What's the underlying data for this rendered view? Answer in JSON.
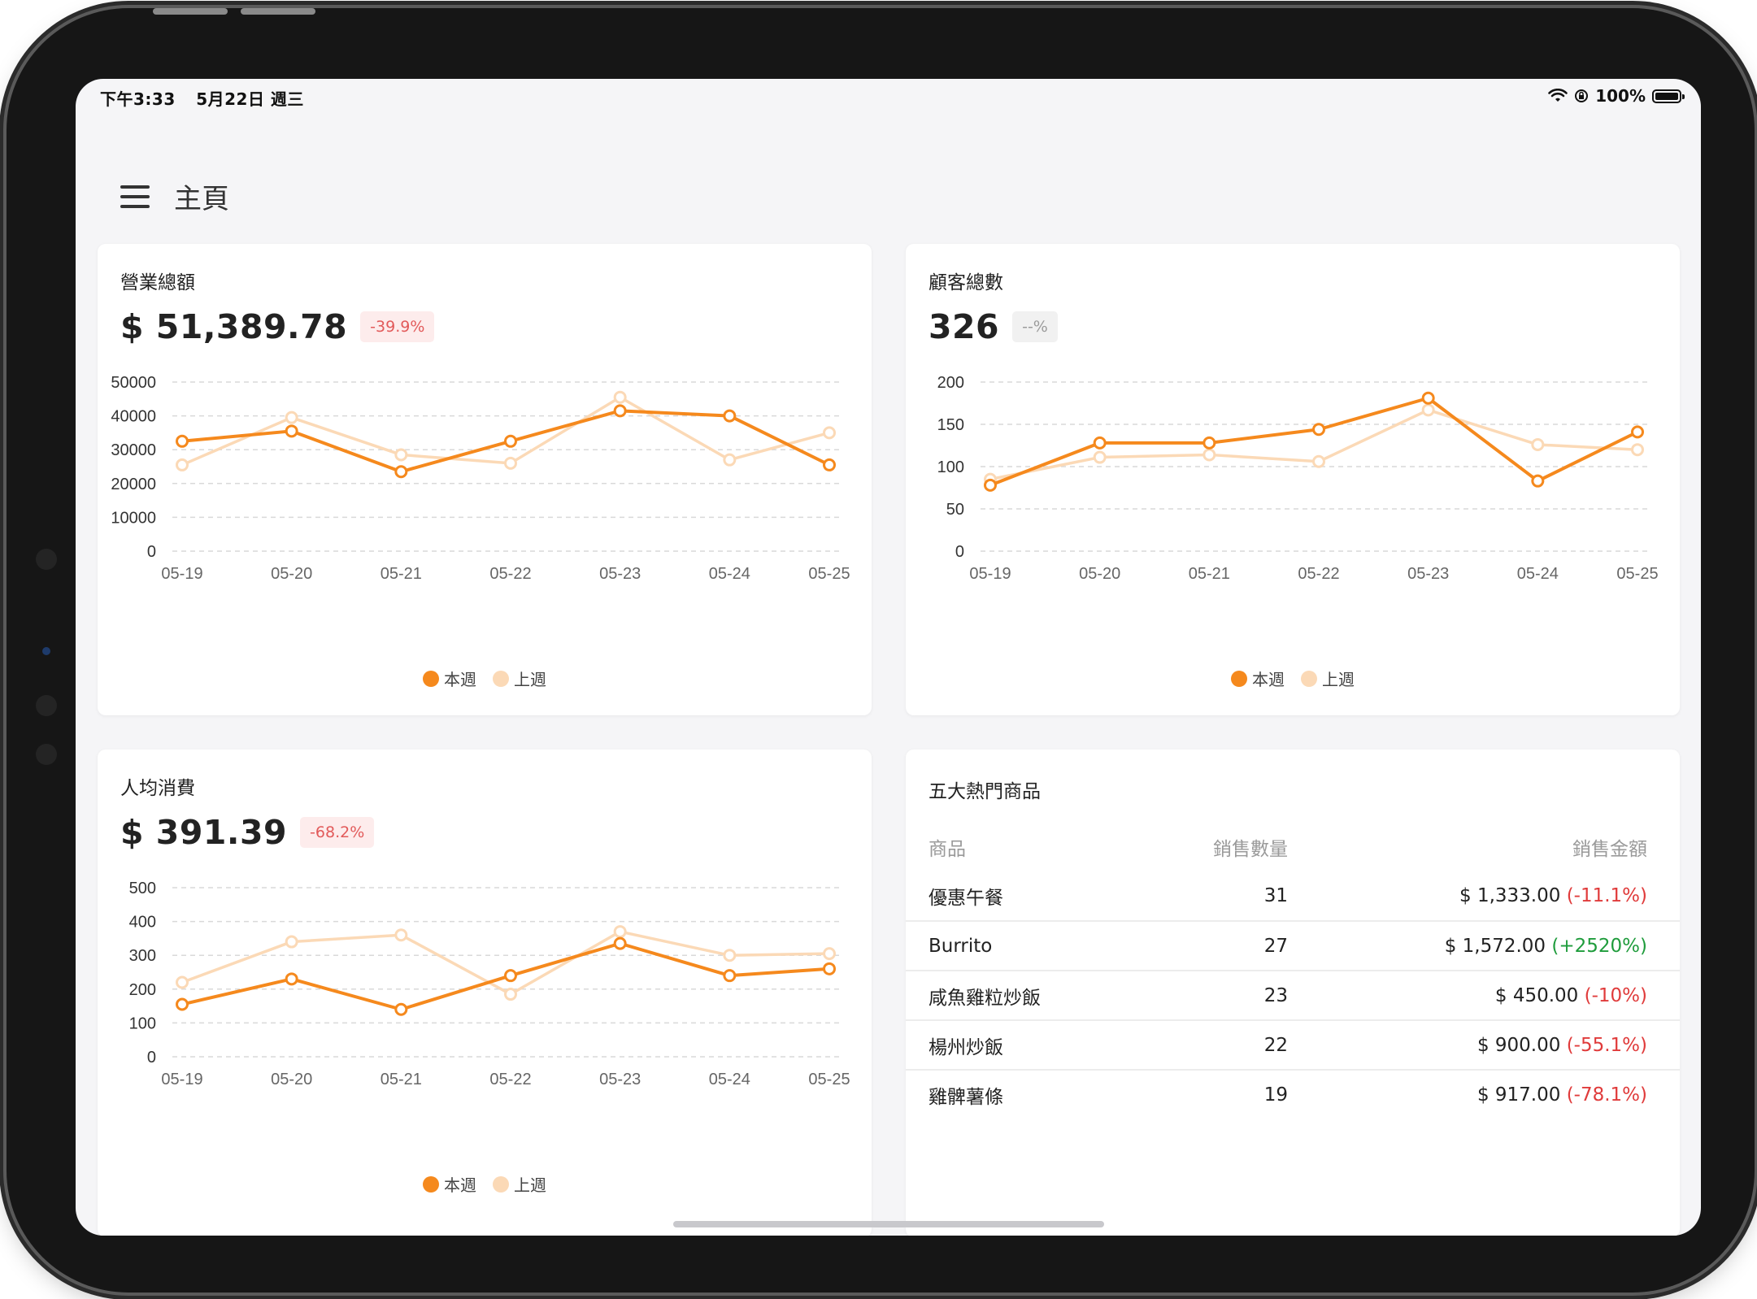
{
  "status_bar": {
    "time": "下午3:33",
    "date": "5月22日 週三",
    "battery": "100%"
  },
  "header": {
    "title": "主頁"
  },
  "colors": {
    "this_week": "#f5891d",
    "last_week": "#fbd9b6",
    "negative": "#e03b3b",
    "positive": "#1f9c3c"
  },
  "legend": {
    "this_week": "本週",
    "last_week": "上週"
  },
  "revenue": {
    "title": "營業總額",
    "value": "$ 51,389.78",
    "change": "-39.9%",
    "chart_data": {
      "type": "line",
      "categories": [
        "05-19",
        "05-20",
        "05-21",
        "05-22",
        "05-23",
        "05-24",
        "05-25"
      ],
      "ylim": [
        0,
        50000
      ],
      "yticks": [
        0,
        10000,
        20000,
        30000,
        40000,
        50000
      ],
      "series": [
        {
          "name": "本週",
          "values": [
            32500,
            35500,
            23500,
            32500,
            41500,
            40000,
            25500
          ]
        },
        {
          "name": "上週",
          "values": [
            25500,
            39500,
            28500,
            26000,
            45500,
            27000,
            35000
          ]
        }
      ],
      "grid": true,
      "legend": "bottom-center"
    }
  },
  "customers": {
    "title": "顧客總數",
    "value": "326",
    "change": "--%",
    "chart_data": {
      "type": "line",
      "categories": [
        "05-19",
        "05-20",
        "05-21",
        "05-22",
        "05-23",
        "05-24",
        "05-25"
      ],
      "ylim": [
        0,
        200
      ],
      "yticks": [
        0,
        50,
        100,
        150,
        200
      ],
      "series": [
        {
          "name": "本週",
          "values": [
            78,
            128,
            128,
            144,
            181,
            83,
            141
          ]
        },
        {
          "name": "上週",
          "values": [
            85,
            111,
            114,
            106,
            167,
            126,
            120
          ]
        }
      ],
      "grid": true,
      "legend": "bottom-center"
    }
  },
  "avg_spend": {
    "title": "人均消費",
    "value": "$ 391.39",
    "change": "-68.2%",
    "chart_data": {
      "type": "line",
      "categories": [
        "05-19",
        "05-20",
        "05-21",
        "05-22",
        "05-23",
        "05-24",
        "05-25"
      ],
      "ylim": [
        0,
        500
      ],
      "yticks": [
        0,
        100,
        200,
        300,
        400,
        500
      ],
      "series": [
        {
          "name": "本週",
          "values": [
            155,
            230,
            140,
            240,
            335,
            240,
            260
          ]
        },
        {
          "name": "上週",
          "values": [
            220,
            340,
            360,
            185,
            370,
            300,
            305
          ]
        }
      ],
      "grid": true,
      "legend": "bottom-center"
    }
  },
  "top_products": {
    "title": "五大熱門商品",
    "columns": {
      "name": "商品",
      "qty": "銷售數量",
      "amount": "銷售金額"
    },
    "rows": [
      {
        "name": "優惠午餐",
        "qty": "31",
        "amount": "$ 1,333.00",
        "change": "(-11.1%)",
        "direction": "neg"
      },
      {
        "name": "Burrito",
        "qty": "27",
        "amount": "$ 1,572.00",
        "change": "(+2520%)",
        "direction": "pos"
      },
      {
        "name": "咸魚雞粒炒飯",
        "qty": "23",
        "amount": "$ 450.00",
        "change": "(-10%)",
        "direction": "neg"
      },
      {
        "name": "楊州炒飯",
        "qty": "22",
        "amount": "$ 900.00",
        "change": "(-55.1%)",
        "direction": "neg"
      },
      {
        "name": "雞髀薯條",
        "qty": "19",
        "amount": "$ 917.00",
        "change": "(-78.1%)",
        "direction": "neg"
      }
    ]
  }
}
